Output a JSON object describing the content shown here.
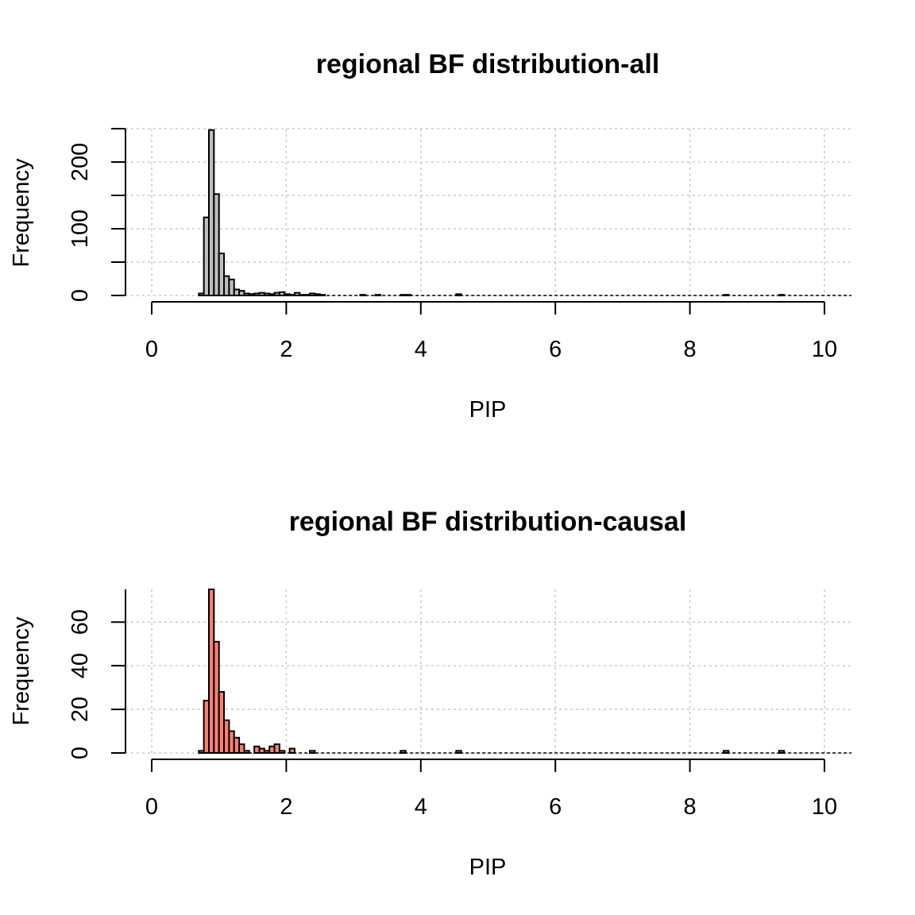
{
  "chart_data": [
    {
      "type": "bar",
      "title": "regional BF distribution-all",
      "xlabel": "PIP",
      "ylabel": "Frequency",
      "xlim": [
        0,
        10
      ],
      "ylim": [
        0,
        250
      ],
      "xticks": [
        "0",
        "2",
        "4",
        "6",
        "8",
        "10"
      ],
      "yticks": [
        "0",
        "100",
        "200"
      ],
      "bin_width": 0.075,
      "bin_start": 0.7,
      "grid": true,
      "bar_color": "#bebebe",
      "values": [
        3,
        117,
        248,
        152,
        63,
        29,
        24,
        9,
        7,
        3,
        2,
        3,
        4,
        3,
        2,
        4,
        5,
        2,
        1,
        4,
        1,
        1,
        3,
        2,
        1,
        0,
        0,
        0,
        0,
        0,
        0,
        0,
        1,
        0,
        0,
        1,
        0,
        0,
        0,
        0,
        1,
        1,
        0,
        0,
        0,
        0,
        0,
        0,
        0,
        0,
        0,
        2,
        0,
        0,
        0,
        0,
        0,
        0,
        0,
        0,
        0,
        0,
        0,
        0,
        0,
        0,
        0,
        0,
        0,
        0,
        0,
        0,
        0,
        0,
        0,
        0,
        0,
        0,
        0,
        0,
        0,
        0,
        0,
        0,
        0,
        0,
        0,
        0,
        0,
        0,
        0,
        0,
        0,
        0,
        0,
        0,
        0,
        0,
        0,
        0,
        0,
        0,
        0,
        0,
        1,
        0,
        0,
        0,
        0,
        0,
        0,
        0,
        0,
        0,
        0,
        1
      ]
    },
    {
      "type": "bar",
      "title": "regional BF distribution-causal",
      "xlabel": "PIP",
      "ylabel": "Frequency",
      "xlim": [
        0,
        10
      ],
      "ylim": [
        0,
        75
      ],
      "xticks": [
        "0",
        "2",
        "4",
        "6",
        "8",
        "10"
      ],
      "yticks": [
        "0",
        "20",
        "40",
        "60"
      ],
      "bin_width": 0.075,
      "bin_start": 0.7,
      "grid": true,
      "bar_color": "#fa8072",
      "values": [
        1,
        24,
        75,
        51,
        28,
        15,
        10,
        7,
        4,
        1,
        0,
        3,
        2,
        1,
        3,
        4,
        1,
        0,
        2,
        0,
        0,
        0,
        1,
        0,
        0,
        0,
        0,
        0,
        0,
        0,
        0,
        0,
        0,
        0,
        0,
        0,
        0,
        0,
        0,
        0,
        1,
        0,
        0,
        0,
        0,
        0,
        0,
        0,
        0,
        0,
        0,
        1,
        0,
        0,
        0,
        0,
        0,
        0,
        0,
        0,
        0,
        0,
        0,
        0,
        0,
        0,
        0,
        0,
        0,
        0,
        0,
        0,
        0,
        0,
        0,
        0,
        0,
        0,
        0,
        0,
        0,
        0,
        0,
        0,
        0,
        0,
        0,
        0,
        0,
        0,
        0,
        0,
        0,
        0,
        0,
        0,
        0,
        0,
        0,
        0,
        0,
        0,
        0,
        0,
        1,
        0,
        0,
        0,
        0,
        0,
        0,
        0,
        0,
        0,
        0,
        1
      ]
    }
  ]
}
